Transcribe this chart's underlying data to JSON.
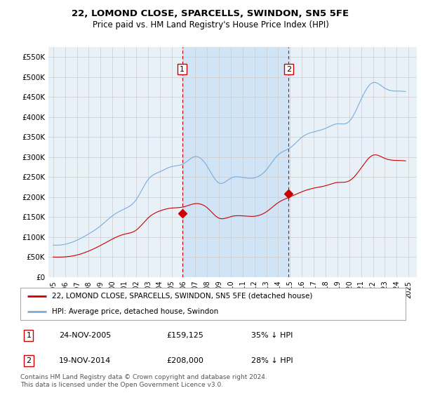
{
  "title": "22, LOMOND CLOSE, SPARCELLS, SWINDON, SN5 5FE",
  "subtitle": "Price paid vs. HM Land Registry's House Price Index (HPI)",
  "ylim": [
    0,
    575000
  ],
  "yticks": [
    0,
    50000,
    100000,
    150000,
    200000,
    250000,
    300000,
    350000,
    400000,
    450000,
    500000,
    550000
  ],
  "ytick_labels": [
    "£0",
    "£50K",
    "£100K",
    "£150K",
    "£200K",
    "£250K",
    "£300K",
    "£350K",
    "£400K",
    "£450K",
    "£500K",
    "£550K"
  ],
  "xlim_start": 1994.6,
  "xlim_end": 2025.7,
  "xlabel_years": [
    1995,
    1996,
    1997,
    1998,
    1999,
    2000,
    2001,
    2002,
    2003,
    2004,
    2005,
    2006,
    2007,
    2008,
    2009,
    2010,
    2011,
    2012,
    2013,
    2014,
    2015,
    2016,
    2017,
    2018,
    2019,
    2020,
    2021,
    2022,
    2023,
    2024,
    2025
  ],
  "marker1_x": 2005.9,
  "marker1_y": 159125,
  "marker2_x": 2014.88,
  "marker2_y": 208000,
  "red_color": "#cc0000",
  "blue_color": "#7aaddb",
  "shade_color": "#d0e4f5",
  "grid_color": "#cccccc",
  "plot_bg": "#e8f0f8",
  "legend_label_red": "22, LOMOND CLOSE, SPARCELLS, SWINDON, SN5 5FE (detached house)",
  "legend_label_blue": "HPI: Average price, detached house, Swindon",
  "table_row1": [
    "1",
    "24-NOV-2005",
    "£159,125",
    "35% ↓ HPI"
  ],
  "table_row2": [
    "2",
    "19-NOV-2014",
    "£208,000",
    "28% ↓ HPI"
  ],
  "footer": "Contains HM Land Registry data © Crown copyright and database right 2024.\nThis data is licensed under the Open Government Licence v3.0."
}
